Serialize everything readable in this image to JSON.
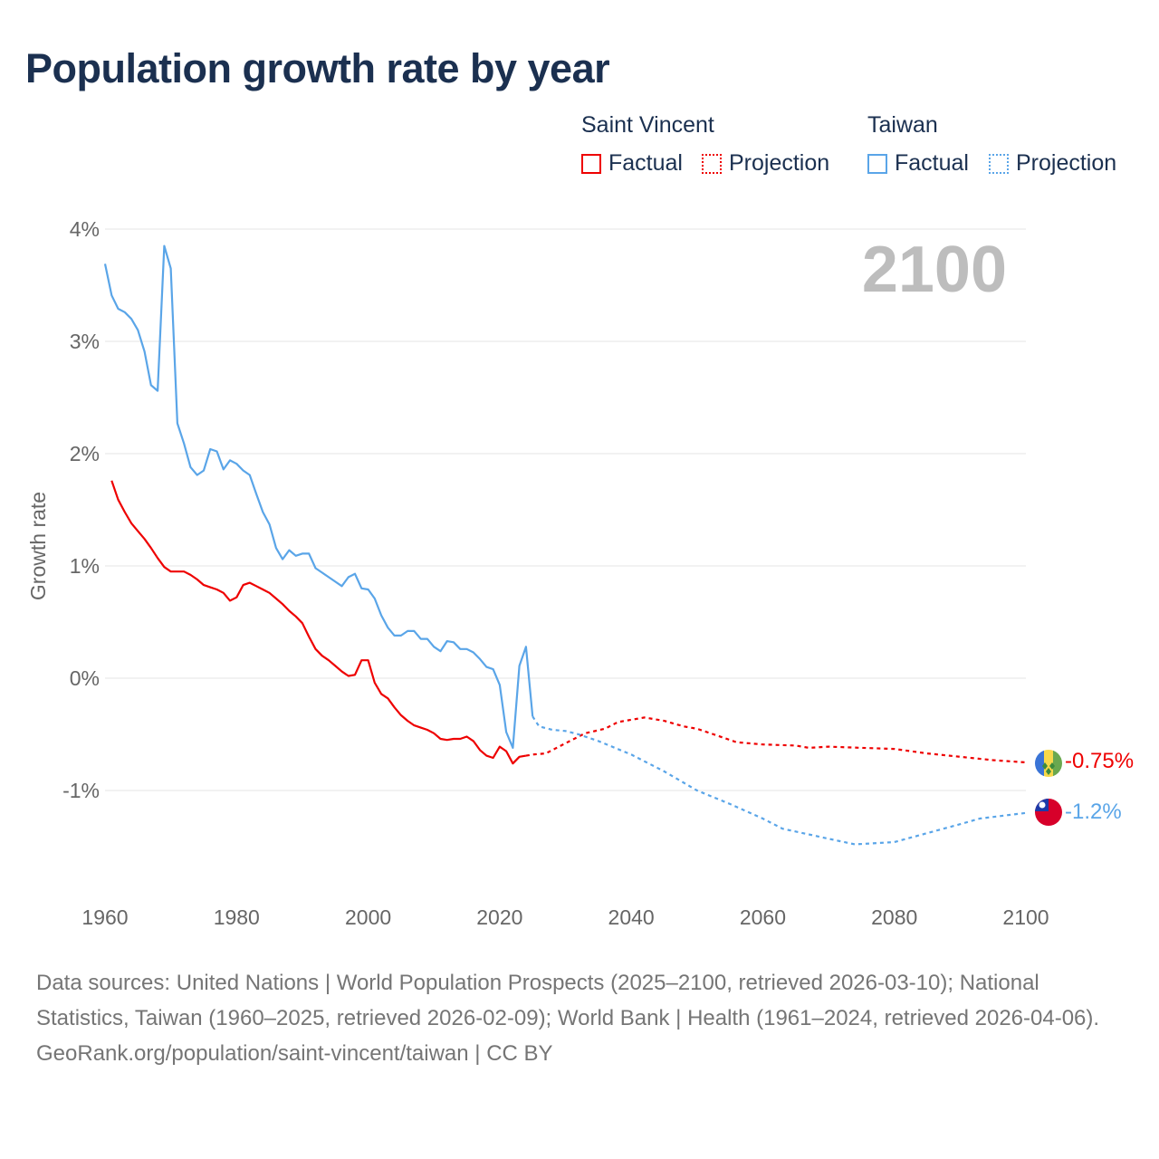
{
  "title": "Population growth rate by year",
  "legend": {
    "groups": [
      {
        "name": "Saint Vincent",
        "color": "#ee0000",
        "factual": "Factual",
        "projection": "Projection"
      },
      {
        "name": "Taiwan",
        "color": "#5aa5e8",
        "factual": "Factual",
        "projection": "Projection"
      }
    ]
  },
  "year_label": "2100",
  "end_labels": {
    "saint_vincent": "-0.75%",
    "taiwan": "-1.2%"
  },
  "footer": {
    "sources": "Data sources: United Nations | World Population Prospects (2025–2100, retrieved 2026-03-10); National Statistics, Taiwan (1960–2025, retrieved 2026-02-09); World Bank | Health (1961–2024, retrieved 2026-04-06).",
    "credit": "GeoRank.org/population/saint-vincent/taiwan | CC BY"
  },
  "chart_data": {
    "type": "line",
    "title": "Population growth rate by year",
    "xlabel": "",
    "ylabel": "Growth rate",
    "xlim": [
      1960,
      2100
    ],
    "ylim": [
      -1.9,
      4.0
    ],
    "xticks": [
      "1960",
      "1980",
      "2000",
      "2020",
      "2040",
      "2060",
      "2080",
      "2100"
    ],
    "yticks": [
      {
        "v": 4,
        "label": "4%"
      },
      {
        "v": 3,
        "label": "3%"
      },
      {
        "v": 2,
        "label": "2%"
      },
      {
        "v": 1,
        "label": "1%"
      },
      {
        "v": 0,
        "label": "0%"
      },
      {
        "v": -1,
        "label": "-1%"
      }
    ],
    "grid": true,
    "series": [
      {
        "name": "Saint Vincent",
        "color": "#ee0000",
        "factual": [
          [
            1961,
            1.76
          ],
          [
            1962,
            1.59
          ],
          [
            1963,
            1.48
          ],
          [
            1964,
            1.38
          ],
          [
            1965,
            1.31
          ],
          [
            1966,
            1.24
          ],
          [
            1967,
            1.16
          ],
          [
            1968,
            1.07
          ],
          [
            1969,
            0.99
          ],
          [
            1970,
            0.95
          ],
          [
            1971,
            0.95
          ],
          [
            1972,
            0.95
          ],
          [
            1973,
            0.92
          ],
          [
            1974,
            0.88
          ],
          [
            1975,
            0.83
          ],
          [
            1976,
            0.81
          ],
          [
            1977,
            0.79
          ],
          [
            1978,
            0.76
          ],
          [
            1979,
            0.69
          ],
          [
            1980,
            0.72
          ],
          [
            1981,
            0.83
          ],
          [
            1982,
            0.85
          ],
          [
            1983,
            0.82
          ],
          [
            1984,
            0.79
          ],
          [
            1985,
            0.76
          ],
          [
            1986,
            0.71
          ],
          [
            1987,
            0.66
          ],
          [
            1988,
            0.6
          ],
          [
            1989,
            0.55
          ],
          [
            1990,
            0.49
          ],
          [
            1991,
            0.37
          ],
          [
            1992,
            0.26
          ],
          [
            1993,
            0.2
          ],
          [
            1994,
            0.16
          ],
          [
            1995,
            0.11
          ],
          [
            1996,
            0.06
          ],
          [
            1997,
            0.02
          ],
          [
            1998,
            0.03
          ],
          [
            1999,
            0.16
          ],
          [
            2000,
            0.16
          ],
          [
            2001,
            -0.04
          ],
          [
            2002,
            -0.14
          ],
          [
            2003,
            -0.18
          ],
          [
            2004,
            -0.26
          ],
          [
            2005,
            -0.33
          ],
          [
            2006,
            -0.38
          ],
          [
            2007,
            -0.42
          ],
          [
            2008,
            -0.44
          ],
          [
            2009,
            -0.46
          ],
          [
            2010,
            -0.49
          ],
          [
            2011,
            -0.54
          ],
          [
            2012,
            -0.55
          ],
          [
            2013,
            -0.54
          ],
          [
            2014,
            -0.54
          ],
          [
            2015,
            -0.52
          ],
          [
            2016,
            -0.56
          ],
          [
            2017,
            -0.64
          ],
          [
            2018,
            -0.69
          ],
          [
            2019,
            -0.71
          ],
          [
            2020,
            -0.61
          ],
          [
            2021,
            -0.65
          ],
          [
            2022,
            -0.76
          ],
          [
            2023,
            -0.7
          ],
          [
            2024,
            -0.69
          ]
        ],
        "projection": [
          [
            2024,
            -0.69
          ],
          [
            2025,
            -0.68
          ],
          [
            2027,
            -0.67
          ],
          [
            2030,
            -0.58
          ],
          [
            2033,
            -0.49
          ],
          [
            2036,
            -0.45
          ],
          [
            2038,
            -0.39
          ],
          [
            2042,
            -0.35
          ],
          [
            2045,
            -0.38
          ],
          [
            2048,
            -0.43
          ],
          [
            2050,
            -0.45
          ],
          [
            2053,
            -0.51
          ],
          [
            2056,
            -0.57
          ],
          [
            2060,
            -0.59
          ],
          [
            2065,
            -0.6
          ],
          [
            2067,
            -0.62
          ],
          [
            2070,
            -0.61
          ],
          [
            2075,
            -0.62
          ],
          [
            2080,
            -0.63
          ],
          [
            2085,
            -0.67
          ],
          [
            2090,
            -0.7
          ],
          [
            2095,
            -0.73
          ],
          [
            2100,
            -0.75
          ]
        ]
      },
      {
        "name": "Taiwan",
        "color": "#5aa5e8",
        "factual": [
          [
            1960,
            3.69
          ],
          [
            1961,
            3.41
          ],
          [
            1962,
            3.29
          ],
          [
            1963,
            3.26
          ],
          [
            1964,
            3.2
          ],
          [
            1965,
            3.1
          ],
          [
            1966,
            2.91
          ],
          [
            1967,
            2.61
          ],
          [
            1968,
            2.56
          ],
          [
            1969,
            3.85
          ],
          [
            1970,
            3.65
          ],
          [
            1971,
            2.27
          ],
          [
            1972,
            2.09
          ],
          [
            1973,
            1.88
          ],
          [
            1974,
            1.81
          ],
          [
            1975,
            1.85
          ],
          [
            1976,
            2.04
          ],
          [
            1977,
            2.02
          ],
          [
            1978,
            1.86
          ],
          [
            1979,
            1.94
          ],
          [
            1980,
            1.91
          ],
          [
            1981,
            1.85
          ],
          [
            1982,
            1.81
          ],
          [
            1983,
            1.64
          ],
          [
            1984,
            1.48
          ],
          [
            1985,
            1.37
          ],
          [
            1986,
            1.16
          ],
          [
            1987,
            1.06
          ],
          [
            1988,
            1.14
          ],
          [
            1989,
            1.09
          ],
          [
            1990,
            1.11
          ],
          [
            1991,
            1.11
          ],
          [
            1992,
            0.98
          ],
          [
            1993,
            0.94
          ],
          [
            1994,
            0.9
          ],
          [
            1995,
            0.86
          ],
          [
            1996,
            0.82
          ],
          [
            1997,
            0.9
          ],
          [
            1998,
            0.93
          ],
          [
            1999,
            0.8
          ],
          [
            2000,
            0.79
          ],
          [
            2001,
            0.71
          ],
          [
            2002,
            0.56
          ],
          [
            2003,
            0.45
          ],
          [
            2004,
            0.38
          ],
          [
            2005,
            0.38
          ],
          [
            2006,
            0.42
          ],
          [
            2007,
            0.42
          ],
          [
            2008,
            0.35
          ],
          [
            2009,
            0.35
          ],
          [
            2010,
            0.28
          ],
          [
            2011,
            0.24
          ],
          [
            2012,
            0.33
          ],
          [
            2013,
            0.32
          ],
          [
            2014,
            0.26
          ],
          [
            2015,
            0.26
          ],
          [
            2016,
            0.23
          ],
          [
            2017,
            0.17
          ],
          [
            2018,
            0.1
          ],
          [
            2019,
            0.08
          ],
          [
            2020,
            -0.06
          ],
          [
            2021,
            -0.48
          ],
          [
            2022,
            -0.62
          ],
          [
            2023,
            0.11
          ],
          [
            2024,
            0.28
          ],
          [
            2025,
            -0.34
          ]
        ],
        "projection": [
          [
            2025,
            -0.34
          ],
          [
            2026,
            -0.43
          ],
          [
            2028,
            -0.46
          ],
          [
            2030,
            -0.47
          ],
          [
            2032,
            -0.5
          ],
          [
            2035,
            -0.56
          ],
          [
            2040,
            -0.68
          ],
          [
            2045,
            -0.83
          ],
          [
            2050,
            -1.0
          ],
          [
            2055,
            -1.12
          ],
          [
            2060,
            -1.25
          ],
          [
            2063,
            -1.34
          ],
          [
            2070,
            -1.43
          ],
          [
            2074,
            -1.48
          ],
          [
            2080,
            -1.46
          ],
          [
            2085,
            -1.38
          ],
          [
            2090,
            -1.3
          ],
          [
            2093,
            -1.25
          ],
          [
            2100,
            -1.2
          ]
        ]
      }
    ]
  }
}
